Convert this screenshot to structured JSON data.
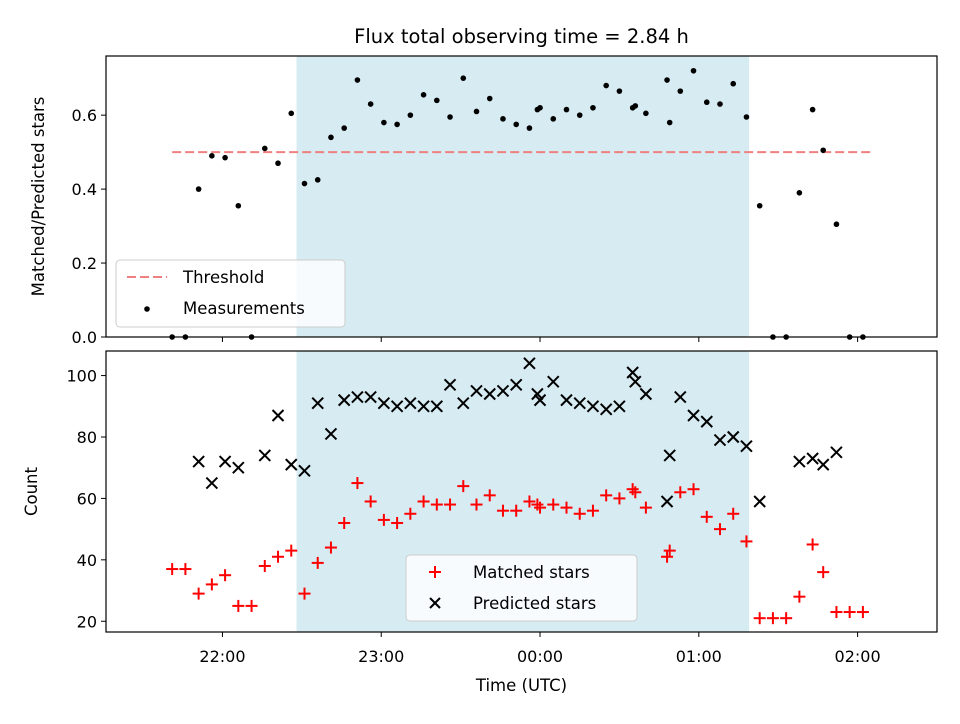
{
  "chart_data": [
    {
      "type": "scatter",
      "title": "Flux total observing time = 2.84 h",
      "xlabel": "",
      "ylabel": "Matched/Predicted stars",
      "xlim": [
        "21:16",
        "02:30"
      ],
      "ylim": [
        0,
        0.76
      ],
      "yticks": [
        "0.0",
        "0.2",
        "0.4",
        "0.6"
      ],
      "shaded_span": [
        "22:28",
        "01:19"
      ],
      "threshold": {
        "name": "Threshold",
        "value": 0.5,
        "x_range": [
          "21:41",
          "02:05"
        ],
        "color": "#f08080"
      },
      "series": [
        {
          "name": "Measurements",
          "color": "#000000",
          "x": [
            "21:41",
            "21:46",
            "21:51",
            "21:56",
            "22:01",
            "22:06",
            "22:11",
            "22:16",
            "22:21",
            "22:26",
            "22:31",
            "22:36",
            "22:41",
            "22:46",
            "22:51",
            "22:56",
            "23:01",
            "23:06",
            "23:11",
            "23:16",
            "23:21",
            "23:26",
            "23:31",
            "23:36",
            "23:41",
            "23:46",
            "23:51",
            "23:56",
            "23:59",
            "00:00",
            "00:05",
            "00:10",
            "00:15",
            "00:20",
            "00:25",
            "00:30",
            "00:35",
            "00:36",
            "00:40",
            "00:48",
            "00:49",
            "00:53",
            "00:58",
            "01:03",
            "01:08",
            "01:13",
            "01:18",
            "01:23",
            "01:28",
            "01:33",
            "01:38",
            "01:43",
            "01:47",
            "01:52",
            "01:57",
            "02:02"
          ],
          "y": [
            0.0,
            0.0,
            0.4,
            0.49,
            0.485,
            0.355,
            0.0,
            0.51,
            0.47,
            0.605,
            0.415,
            0.425,
            0.54,
            0.565,
            0.695,
            0.63,
            0.58,
            0.575,
            0.6,
            0.655,
            0.64,
            0.595,
            0.7,
            0.61,
            0.645,
            0.59,
            0.575,
            0.565,
            0.615,
            0.62,
            0.59,
            0.615,
            0.6,
            0.62,
            0.68,
            0.665,
            0.62,
            0.625,
            0.605,
            0.695,
            0.58,
            0.665,
            0.72,
            0.635,
            0.63,
            0.685,
            0.595,
            0.355,
            0.0,
            0.0,
            0.39,
            0.615,
            0.505,
            0.305,
            0.0,
            0.0
          ]
        }
      ],
      "legend": "lower-left"
    },
    {
      "type": "scatter",
      "title": "",
      "xlabel": "Time (UTC)",
      "ylabel": "Count",
      "xlim": [
        "21:16",
        "02:30"
      ],
      "ylim": [
        16.5,
        108
      ],
      "xticks": [
        "22:00",
        "23:00",
        "00:00",
        "01:00",
        "02:00"
      ],
      "yticks": [
        "20",
        "40",
        "60",
        "80",
        "100"
      ],
      "shaded_span": [
        "22:28",
        "01:19"
      ],
      "series": [
        {
          "name": "Matched stars",
          "color": "#ff0000",
          "marker": "plus",
          "x": [
            "21:41",
            "21:46",
            "21:51",
            "21:56",
            "22:01",
            "22:06",
            "22:11",
            "22:16",
            "22:21",
            "22:26",
            "22:31",
            "22:36",
            "22:41",
            "22:46",
            "22:51",
            "22:56",
            "23:01",
            "23:06",
            "23:11",
            "23:16",
            "23:21",
            "23:26",
            "23:31",
            "23:36",
            "23:41",
            "23:46",
            "23:51",
            "23:56",
            "23:59",
            "00:00",
            "00:05",
            "00:10",
            "00:15",
            "00:20",
            "00:25",
            "00:30",
            "00:35",
            "00:36",
            "00:40",
            "00:48",
            "00:49",
            "00:53",
            "00:58",
            "01:03",
            "01:08",
            "01:13",
            "01:18",
            "01:23",
            "01:28",
            "01:33",
            "01:38",
            "01:43",
            "01:47",
            "01:52",
            "01:57",
            "02:02"
          ],
          "y": [
            37,
            37,
            29,
            32,
            35,
            25,
            25,
            38,
            41,
            43,
            29,
            39,
            44,
            52,
            65,
            59,
            53,
            52,
            55,
            59,
            58,
            58,
            64,
            58,
            61,
            56,
            56,
            59,
            58,
            57,
            58,
            57,
            55,
            56,
            61,
            60,
            63,
            62,
            57,
            41,
            43,
            62,
            63,
            54,
            50,
            55,
            46,
            21,
            21,
            21,
            28,
            45,
            36,
            23,
            23,
            23
          ]
        },
        {
          "name": "Predicted stars",
          "color": "#000000",
          "marker": "x",
          "x": [
            "21:51",
            "21:56",
            "22:01",
            "22:06",
            "22:16",
            "22:21",
            "22:26",
            "22:31",
            "22:36",
            "22:41",
            "22:46",
            "22:51",
            "22:56",
            "23:01",
            "23:06",
            "23:11",
            "23:16",
            "23:21",
            "23:26",
            "23:31",
            "23:36",
            "23:41",
            "23:46",
            "23:51",
            "23:56",
            "23:59",
            "00:00",
            "00:05",
            "00:10",
            "00:15",
            "00:20",
            "00:25",
            "00:30",
            "00:35",
            "00:36",
            "00:40",
            "00:48",
            "00:49",
            "00:53",
            "00:58",
            "01:03",
            "01:08",
            "01:13",
            "01:18",
            "01:23",
            "01:38",
            "01:43",
            "01:47",
            "01:52"
          ],
          "y": [
            72,
            65,
            72,
            70,
            74,
            87,
            71,
            69,
            91,
            81,
            92,
            93,
            93,
            91,
            90,
            91,
            90,
            90,
            97,
            91,
            95,
            94,
            95,
            97,
            104,
            94,
            92,
            98,
            92,
            91,
            90,
            89,
            90,
            101,
            98,
            94,
            59,
            74,
            93,
            87,
            85,
            79,
            80,
            77,
            59,
            72,
            73,
            71,
            75
          ]
        }
      ],
      "legend": "lower-center"
    }
  ]
}
